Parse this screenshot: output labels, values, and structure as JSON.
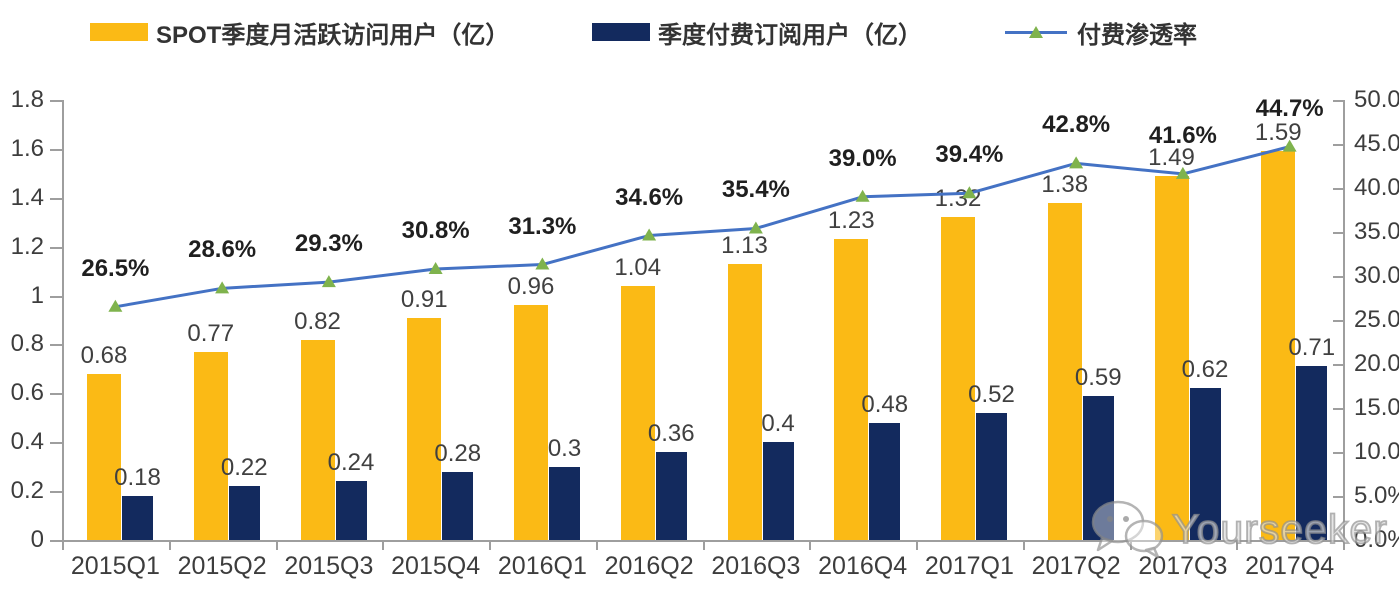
{
  "legend": {
    "mau_label": "SPOT季度月活跃访问用户（亿）",
    "subs_label": "季度付费订阅用户（亿）",
    "penetration_label": "付费渗透率"
  },
  "colors": {
    "mau_bar": "#FBBA15",
    "subs_bar": "#132A5E",
    "penetration_line": "#4472C4",
    "marker_green": "#7FB34D",
    "axis_gray": "#9E9E9E"
  },
  "watermark": {
    "text": "Yourseeker",
    "icon": "wechat-icon"
  },
  "chart_data": {
    "type": "combo",
    "title": "",
    "grid": false,
    "legend_position": "top",
    "categories": [
      "2015Q1",
      "2015Q2",
      "2015Q3",
      "2015Q4",
      "2016Q1",
      "2016Q2",
      "2016Q3",
      "2016Q4",
      "2017Q1",
      "2017Q2",
      "2017Q3",
      "2017Q4"
    ],
    "series": [
      {
        "name": "SPOT季度月活跃访问用户（亿）",
        "type": "bar",
        "axis": "left",
        "color": "#FBBA15",
        "values": [
          0.68,
          0.77,
          0.82,
          0.91,
          0.96,
          1.04,
          1.13,
          1.23,
          1.32,
          1.38,
          1.49,
          1.59
        ],
        "labels": [
          "0.68",
          "0.77",
          "0.82",
          "0.91",
          "0.96",
          "1.04",
          "1.13",
          "1.23",
          "1.32",
          "1.38",
          "1.49",
          "1.59"
        ]
      },
      {
        "name": "季度付费订阅用户（亿）",
        "type": "bar",
        "axis": "left",
        "color": "#132A5E",
        "values": [
          0.18,
          0.22,
          0.24,
          0.28,
          0.3,
          0.36,
          0.4,
          0.48,
          0.52,
          0.59,
          0.62,
          0.71
        ],
        "labels": [
          "0.18",
          "0.22",
          "0.24",
          "0.28",
          "0.3",
          "0.36",
          "0.4",
          "0.48",
          "0.52",
          "0.59",
          "0.62",
          "0.71"
        ]
      },
      {
        "name": "付费渗透率",
        "type": "line",
        "axis": "right",
        "color": "#4472C4",
        "marker_color": "#7FB34D",
        "values": [
          26.5,
          28.6,
          29.3,
          30.8,
          31.3,
          34.6,
          35.4,
          39.0,
          39.4,
          42.8,
          41.6,
          44.7
        ],
        "labels": [
          "26.5%",
          "28.6%",
          "29.3%",
          "30.8%",
          "31.3%",
          "34.6%",
          "35.4%",
          "39.0%",
          "39.4%",
          "42.8%",
          "41.6%",
          "44.7%"
        ]
      }
    ],
    "left_axis": {
      "min": 0,
      "max": 1.8,
      "tick_values": [
        0,
        0.2,
        0.4,
        0.6,
        0.8,
        1,
        1.2,
        1.4,
        1.6,
        1.8
      ],
      "tick_labels": [
        "0",
        "0.2",
        "0.4",
        "0.6",
        "0.8",
        "1",
        "1.2",
        "1.4",
        "1.6",
        "1.8"
      ]
    },
    "right_axis": {
      "min": 0,
      "max": 50,
      "tick_values": [
        0,
        5,
        10,
        15,
        20,
        25,
        30,
        35,
        40,
        45,
        50
      ],
      "tick_labels": [
        "0.0%",
        "5.0%",
        "10.0%",
        "15.0%",
        "20.0%",
        "25.0%",
        "30.0%",
        "35.0%",
        "40.0%",
        "45.0%",
        "50.0%"
      ]
    }
  }
}
